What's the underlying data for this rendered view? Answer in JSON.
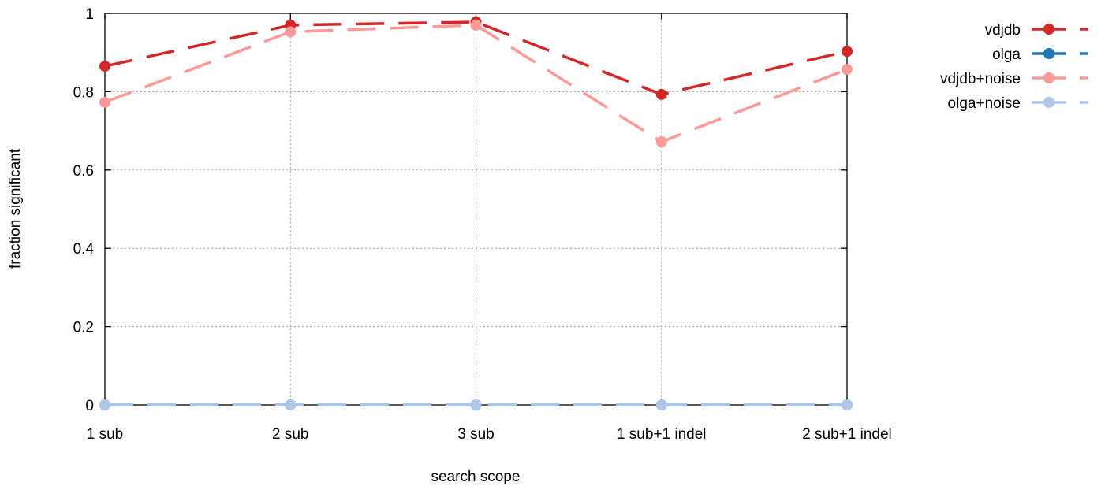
{
  "chart_data": {
    "type": "line",
    "title": "",
    "xlabel": "search scope",
    "ylabel": "fraction significant",
    "categories": [
      "1 sub",
      "2 sub",
      "3 sub",
      "1 sub+1 indel",
      "2 sub+1 indel"
    ],
    "ylim": [
      0,
      1
    ],
    "yticks": [
      0,
      0.2,
      0.4,
      0.6,
      0.8,
      1
    ],
    "ytick_labels": [
      "0",
      "0.2",
      "0.4",
      "0.6",
      "0.8",
      "1"
    ],
    "grid": true,
    "legend_position": "top-right outside",
    "series": [
      {
        "name": "vdjdb",
        "color": "#d62728",
        "values": [
          0.865,
          0.97,
          0.978,
          0.793,
          0.903
        ]
      },
      {
        "name": "olga",
        "color": "#1f77b4",
        "values": [
          0,
          0,
          0,
          0,
          0
        ]
      },
      {
        "name": "vdjdb+noise",
        "color": "#ff9896",
        "values": [
          0.773,
          0.953,
          0.97,
          0.672,
          0.857
        ]
      },
      {
        "name": "olga+noise",
        "color": "#aec7e8",
        "values": [
          0,
          0,
          0,
          0,
          0
        ]
      }
    ]
  }
}
